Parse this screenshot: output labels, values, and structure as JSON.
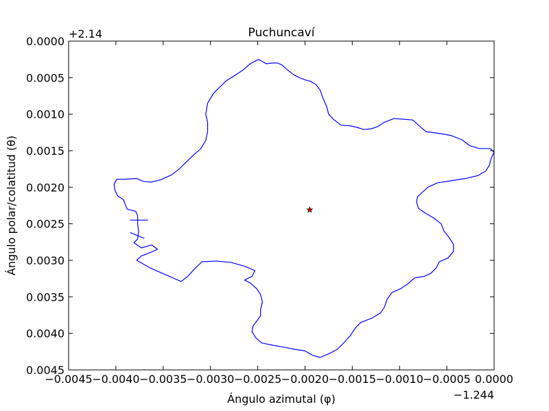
{
  "chart_data": {
    "type": "line",
    "title": "Puchuncaví",
    "xlabel": "Ángulo azimutal (φ)",
    "ylabel": "Ángulo polar/colatitud (θ)",
    "x_offset_label": "−1.244",
    "y_offset_label": "+2.14",
    "xlim": [
      -0.0045,
      0.0
    ],
    "ylim": [
      0.0045,
      0.0
    ],
    "y_inverted": true,
    "grid": false,
    "x_ticks": [
      "−0.0045",
      "−0.0040",
      "−0.0035",
      "−0.0030",
      "−0.0025",
      "−0.0020",
      "−0.0015",
      "−0.0010",
      "−0.0005",
      "0.0000"
    ],
    "x_tick_values": [
      -0.0045,
      -0.004,
      -0.0035,
      -0.003,
      -0.0025,
      -0.002,
      -0.0015,
      -0.001,
      -0.0005,
      0.0
    ],
    "y_ticks": [
      "0.0000",
      "0.0005",
      "0.0010",
      "0.0015",
      "0.0020",
      "0.0025",
      "0.0030",
      "0.0035",
      "0.0040",
      "0.0045"
    ],
    "y_tick_values": [
      0.0,
      0.0005,
      0.001,
      0.0015,
      0.002,
      0.0025,
      0.003,
      0.0035,
      0.004,
      0.0045
    ],
    "series": [
      {
        "type": "line",
        "color": "#0000ff",
        "points": [
          [
            -0.00249,
            0.00025
          ],
          [
            -0.00241,
            0.00031
          ],
          [
            -0.00235,
            0.0003
          ],
          [
            -0.00229,
            0.0003
          ],
          [
            -0.00224,
            0.00033
          ],
          [
            -0.00218,
            0.0004
          ],
          [
            -0.00212,
            0.00046
          ],
          [
            -0.00206,
            0.0005
          ],
          [
            -0.002,
            0.00053
          ],
          [
            -0.00194,
            0.00055
          ],
          [
            -0.00188,
            0.0006
          ],
          [
            -0.00184,
            0.00067
          ],
          [
            -0.00181,
            0.00078
          ],
          [
            -0.00177,
            0.0009
          ],
          [
            -0.00175,
            0.001
          ],
          [
            -0.0017,
            0.00107
          ],
          [
            -0.00162,
            0.00115
          ],
          [
            -0.00152,
            0.00116
          ],
          [
            -0.00145,
            0.00118
          ],
          [
            -0.00138,
            0.00121
          ],
          [
            -0.0013,
            0.0012
          ],
          [
            -0.00123,
            0.00117
          ],
          [
            -0.00116,
            0.00111
          ],
          [
            -0.00106,
            0.00106
          ],
          [
            -0.00095,
            0.00107
          ],
          [
            -0.00086,
            0.00108
          ],
          [
            -0.0008,
            0.00115
          ],
          [
            -0.00072,
            0.00124
          ],
          [
            -0.0006,
            0.00126
          ],
          [
            -0.00046,
            0.00129
          ],
          [
            -0.00034,
            0.00135
          ],
          [
            -0.00026,
            0.00143
          ],
          [
            -0.00016,
            0.00147
          ],
          [
            -4e-05,
            0.00147
          ],
          [
            0.0,
            0.00152
          ],
          [
            -3e-05,
            0.0016
          ],
          [
            -5e-05,
            0.0017
          ],
          [
            -9e-05,
            0.00178
          ],
          [
            -0.00017,
            0.00184
          ],
          [
            -0.0003,
            0.00188
          ],
          [
            -0.00045,
            0.00191
          ],
          [
            -0.0006,
            0.00194
          ],
          [
            -0.0007,
            0.002
          ],
          [
            -0.00076,
            0.00207
          ],
          [
            -0.00081,
            0.00213
          ],
          [
            -0.00082,
            0.0022
          ],
          [
            -0.0008,
            0.00229
          ],
          [
            -0.00072,
            0.00236
          ],
          [
            -0.00064,
            0.00242
          ],
          [
            -0.00056,
            0.0025
          ],
          [
            -0.00053,
            0.0026
          ],
          [
            -0.00048,
            0.00268
          ],
          [
            -0.00043,
            0.00278
          ],
          [
            -0.00043,
            0.00288
          ],
          [
            -0.00049,
            0.00297
          ],
          [
            -0.00058,
            0.00302
          ],
          [
            -0.00061,
            0.0031
          ],
          [
            -0.00067,
            0.00318
          ],
          [
            -0.00074,
            0.00322
          ],
          [
            -0.00084,
            0.00324
          ],
          [
            -0.00091,
            0.00332
          ],
          [
            -0.00099,
            0.00339
          ],
          [
            -0.00108,
            0.00344
          ],
          [
            -0.00113,
            0.00353
          ],
          [
            -0.00116,
            0.00364
          ],
          [
            -0.0012,
            0.00372
          ],
          [
            -0.00129,
            0.00379
          ],
          [
            -0.00141,
            0.00385
          ],
          [
            -0.00147,
            0.00393
          ],
          [
            -0.00152,
            0.00403
          ],
          [
            -0.00159,
            0.00413
          ],
          [
            -0.00166,
            0.00422
          ],
          [
            -0.00175,
            0.00428
          ],
          [
            -0.00184,
            0.00433
          ],
          [
            -0.00192,
            0.0043
          ],
          [
            -0.002,
            0.00424
          ],
          [
            -0.0021,
            0.00422
          ],
          [
            -0.00222,
            0.00419
          ],
          [
            -0.00235,
            0.00416
          ],
          [
            -0.00246,
            0.00413
          ],
          [
            -0.00252,
            0.00406
          ],
          [
            -0.00256,
            0.00398
          ],
          [
            -0.00255,
            0.0039
          ],
          [
            -0.00251,
            0.00383
          ],
          [
            -0.00247,
            0.00376
          ],
          [
            -0.00247,
            0.00367
          ],
          [
            -0.00245,
            0.00357
          ],
          [
            -0.00247,
            0.00347
          ],
          [
            -0.00251,
            0.00339
          ],
          [
            -0.00258,
            0.00331
          ],
          [
            -0.00264,
            0.00327
          ],
          [
            -0.00256,
            0.00322
          ],
          [
            -0.00253,
            0.00314
          ],
          [
            -0.00264,
            0.00308
          ],
          [
            -0.00278,
            0.00303
          ],
          [
            -0.00294,
            0.00301
          ],
          [
            -0.00309,
            0.00302
          ],
          [
            -0.00317,
            0.00312
          ],
          [
            -0.00324,
            0.00322
          ],
          [
            -0.00331,
            0.00329
          ],
          [
            -0.00347,
            0.0032
          ],
          [
            -0.00363,
            0.00311
          ],
          [
            -0.00378,
            0.003
          ],
          [
            -0.00373,
            0.00294
          ],
          [
            -0.00363,
            0.00289
          ],
          [
            -0.00356,
            0.00285
          ],
          [
            -0.00362,
            0.00279
          ],
          [
            -0.00373,
            0.00283
          ],
          [
            -0.00381,
            0.00276
          ],
          [
            -0.00377,
            0.00271
          ],
          [
            -0.00376,
            0.0026
          ],
          [
            -0.00377,
            0.0025
          ],
          [
            -0.00377,
            0.00239
          ],
          [
            -0.00379,
            0.00233
          ],
          [
            -0.00388,
            0.0023
          ],
          [
            -0.0039,
            0.00224
          ],
          [
            -0.00392,
            0.00217
          ],
          [
            -0.00398,
            0.00212
          ],
          [
            -0.00401,
            0.00204
          ],
          [
            -0.00402,
            0.00196
          ],
          [
            -0.00399,
            0.00189
          ],
          [
            -0.0039,
            0.00189
          ],
          [
            -0.00378,
            0.00188
          ],
          [
            -0.00371,
            0.00192
          ],
          [
            -0.00363,
            0.00193
          ],
          [
            -0.00353,
            0.0019
          ],
          [
            -0.00341,
            0.00183
          ],
          [
            -0.00333,
            0.00175
          ],
          [
            -0.00326,
            0.00166
          ],
          [
            -0.00318,
            0.00156
          ],
          [
            -0.0031,
            0.00147
          ],
          [
            -0.00305,
            0.00136
          ],
          [
            -0.00303,
            0.00124
          ],
          [
            -0.00303,
            0.00111
          ],
          [
            -0.00305,
            0.001
          ],
          [
            -0.00303,
            0.00085
          ],
          [
            -0.00297,
            0.00072
          ],
          [
            -0.00291,
            0.00064
          ],
          [
            -0.00283,
            0.00054
          ],
          [
            -0.00273,
            0.00046
          ],
          [
            -0.00265,
            0.00039
          ],
          [
            -0.00258,
            0.00031
          ],
          [
            -0.00249,
            0.00025
          ]
        ]
      },
      {
        "type": "line",
        "color": "#0000ff",
        "points": [
          [
            -0.00385,
            0.00245
          ],
          [
            -0.00366,
            0.00245
          ]
        ]
      },
      {
        "type": "line",
        "color": "#0000ff",
        "points": [
          [
            -0.00385,
            0.00262
          ],
          [
            -0.0037,
            0.0027
          ]
        ]
      },
      {
        "type": "scatter",
        "marker": "star",
        "color": "#cc0000",
        "points": [
          [
            -0.00195,
            0.00231
          ]
        ]
      }
    ]
  }
}
